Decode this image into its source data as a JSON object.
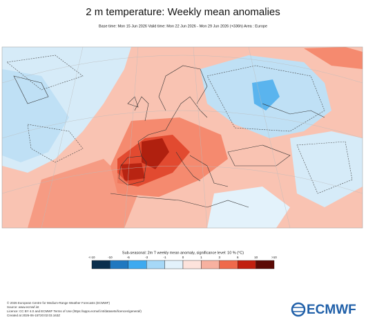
{
  "header": {
    "title": "2 m temperature: Weekly mean anomalies",
    "subtitle": "Base time: Mon 15 Jun 2026 Valid time: Mon 22 Jun 2026 - Mon 29 Jun 2026 (+336h) Area : Europe"
  },
  "legend": {
    "title": "Sub-seasonal: 2m T weekly mean anomaly, significance level: 10 % (°C)",
    "labels": [
      "<-10",
      "-10",
      "-6",
      "-3",
      "-1",
      "0",
      "1",
      "3",
      "6",
      "10",
      ">10"
    ],
    "colors": [
      "#0b2f4d",
      "#1f78c0",
      "#3eaaf0",
      "#a6d8f7",
      "#e3f2fb",
      "#fde3dc",
      "#f7b1a0",
      "#ef6a4c",
      "#c1200f",
      "#5c0a05"
    ]
  },
  "footer": {
    "lines": [
      "© 2026 European Centre for Medium-Range Weather Forecasts (ECMWF)",
      "Source: www.ecmwf.int",
      "Licence: CC BY 4.0 and ECMWF Terms of Use (https://apps.ecmwf.int/datasets/licences/general/)",
      "Created at 2026-06-15T20:02:03.163Z"
    ],
    "logo": "ECMWF"
  }
}
